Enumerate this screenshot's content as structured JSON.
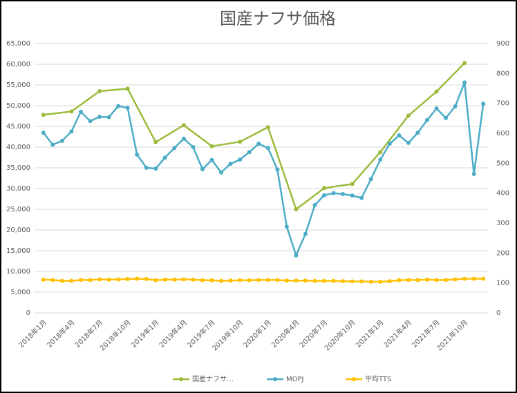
{
  "chart_data": {
    "type": "line",
    "title": "国産ナフサ価格",
    "categories": [
      "2018年1月",
      null,
      null,
      "2018年4月",
      null,
      null,
      "2018年7月",
      null,
      null,
      "2018年10月",
      null,
      null,
      "2019年1月",
      null,
      null,
      "2019年4月",
      null,
      null,
      "2019年7月",
      null,
      null,
      "2019年10月",
      null,
      null,
      "2020年1月",
      null,
      null,
      "2020年4月",
      null,
      null,
      "2020年7月",
      null,
      null,
      "2020年10月",
      null,
      null,
      "2021年1月",
      null,
      null,
      "2021年4月",
      null,
      null,
      "2021年7月",
      null,
      null,
      "2021年10月",
      null,
      null
    ],
    "connect_gaps": true,
    "series": [
      {
        "name": "国産ナフサ…",
        "color": "#9bbb3b",
        "values": [
          47800,
          null,
          null,
          48600,
          null,
          null,
          53500,
          null,
          null,
          54100,
          null,
          null,
          41200,
          null,
          null,
          45300,
          null,
          null,
          40200,
          null,
          null,
          41300,
          null,
          null,
          44800,
          null,
          null,
          25000,
          null,
          null,
          30100,
          null,
          null,
          31100,
          null,
          null,
          38800,
          null,
          null,
          47600,
          null,
          null,
          53400,
          null,
          null,
          60300,
          null,
          null
        ]
      },
      {
        "name": "MOPJ",
        "color": "#4bacc6",
        "axis": "y2",
        "values": [
          602,
          562,
          575,
          606,
          672,
          641,
          655,
          654,
          691,
          685,
          529,
          485,
          482,
          519,
          551,
          582,
          554,
          480,
          511,
          469,
          498,
          512,
          537,
          565,
          551,
          479,
          288,
          192,
          264,
          360,
          393,
          400,
          397,
          392,
          384,
          447,
          512,
          565,
          593,
          568,
          602,
          644,
          683,
          651,
          690,
          770,
          464,
          699
        ]
      },
      {
        "name": "平均TTS",
        "color": "#ffc000",
        "axis": "y2",
        "values": [
          111,
          110,
          107,
          107,
          110,
          110,
          112,
          111,
          112,
          113,
          114,
          113,
          109,
          111,
          111,
          112,
          111,
          109,
          109,
          107,
          108,
          109,
          109,
          110,
          110,
          110,
          108,
          108,
          108,
          107,
          107,
          107,
          106,
          105,
          105,
          104,
          104,
          106,
          109,
          110,
          110,
          111,
          110,
          110,
          112,
          114,
          114,
          114
        ]
      }
    ],
    "ylim": [
      0,
      65000
    ],
    "yticks": [
      0,
      {
        "value": 5000,
        "label": "5,000"
      },
      {
        "value": 10000,
        "label": "10,000"
      },
      {
        "value": 15000,
        "label": "15,000"
      },
      {
        "value": 20000,
        "label": "20,000"
      },
      {
        "value": 25000,
        "label": "25,000"
      },
      {
        "value": 30000,
        "label": "30,000"
      },
      {
        "value": 35000,
        "label": "35,000"
      },
      {
        "value": 40000,
        "label": "40,000"
      },
      {
        "value": 45000,
        "label": "45,000"
      },
      {
        "value": 50000,
        "label": "50,000"
      },
      {
        "value": 55000,
        "label": "55,000"
      },
      {
        "value": 60000,
        "label": "60,000"
      },
      {
        "value": 65000,
        "label": "65,000"
      }
    ],
    "y2lim": [
      0,
      900
    ],
    "y2ticks": [
      0,
      100,
      200,
      300,
      400,
      500,
      600,
      700,
      800,
      900
    ],
    "grid": true,
    "legend": "bottom"
  }
}
